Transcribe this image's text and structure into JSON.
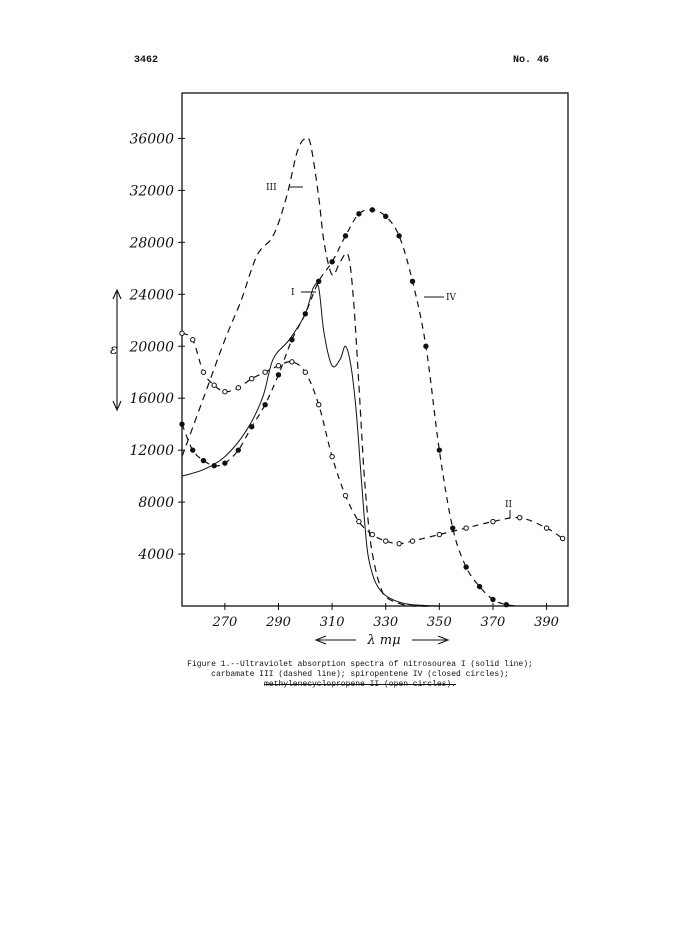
{
  "header": {
    "page_number": "3462",
    "journal_number": "No. 46"
  },
  "chart_data": {
    "type": "line",
    "xlabel": "λ mμ",
    "ylabel": "ε",
    "xlim": [
      254,
      398
    ],
    "ylim": [
      0,
      39500
    ],
    "xticks": [
      270,
      290,
      310,
      330,
      350,
      370,
      390
    ],
    "xtick_labels": [
      "270",
      "290",
      "310",
      "330",
      "350",
      "370",
      "390"
    ],
    "yticks": [
      4000,
      8000,
      12000,
      16000,
      20000,
      24000,
      28000,
      32000,
      36000
    ],
    "ytick_labels": [
      "4000",
      "8000",
      "12000",
      "16000",
      "20000",
      "24000",
      "28000",
      "32000",
      "36000"
    ],
    "grid": false,
    "series": [
      {
        "name": "I",
        "style": "solid",
        "x": [
          254,
          262,
          270,
          278,
          284,
          288,
          294,
          300,
          303,
          305,
          307,
          310,
          313,
          315,
          317,
          319,
          321,
          323,
          325,
          327,
          330,
          335,
          340,
          350
        ],
        "y": [
          10000,
          10500,
          11500,
          13500,
          16000,
          19000,
          20500,
          22500,
          24500,
          24500,
          21000,
          18500,
          19000,
          20000,
          18500,
          15000,
          9500,
          4500,
          2500,
          1500,
          800,
          300,
          100,
          0
        ]
      },
      {
        "name": "III",
        "style": "dashed",
        "x": [
          254,
          262,
          270,
          276,
          282,
          288,
          293,
          297,
          300,
          302,
          305,
          307,
          310,
          313,
          316,
          318,
          320,
          322,
          324,
          326,
          328,
          330,
          335,
          340,
          350
        ],
        "y": [
          11500,
          16000,
          20500,
          23500,
          27000,
          28500,
          31500,
          35000,
          36000,
          35500,
          31500,
          28000,
          25500,
          26500,
          27000,
          23500,
          17000,
          10000,
          5500,
          3000,
          1500,
          700,
          200,
          0,
          0
        ]
      },
      {
        "name": "IV",
        "style": "closed-circles",
        "x": [
          254,
          258,
          262,
          266,
          270,
          275,
          280,
          285,
          290,
          295,
          300,
          305,
          310,
          315,
          320,
          325,
          330,
          335,
          340,
          345,
          350,
          355,
          360,
          365,
          370,
          375,
          380
        ],
        "y": [
          14000,
          12000,
          11200,
          10800,
          11000,
          12000,
          13800,
          15500,
          17800,
          20500,
          22500,
          25000,
          26500,
          28500,
          30200,
          30500,
          30000,
          28500,
          25000,
          20000,
          12000,
          6000,
          3000,
          1500,
          500,
          100,
          0
        ]
      },
      {
        "name": "II",
        "style": "open-circles",
        "x": [
          254,
          258,
          262,
          266,
          270,
          275,
          280,
          285,
          290,
          295,
          300,
          305,
          310,
          315,
          320,
          325,
          330,
          335,
          340,
          350,
          360,
          370,
          380,
          390,
          396
        ],
        "y": [
          21000,
          20500,
          18000,
          17000,
          16500,
          16800,
          17500,
          18000,
          18500,
          18800,
          18000,
          15500,
          11500,
          8500,
          6500,
          5500,
          5000,
          4800,
          5000,
          5500,
          6000,
          6500,
          6800,
          6000,
          5200
        ]
      }
    ],
    "annotations": [
      {
        "text": "I",
        "series": "I"
      },
      {
        "text": "III",
        "series": "III"
      },
      {
        "text": "IV",
        "series": "IV"
      },
      {
        "text": "II",
        "series": "II"
      }
    ]
  },
  "caption": {
    "line1": "Figure 1.--Ultraviolet absorption spectra of nitrosourea I (solid line);",
    "line2": "carbamate III (dashed line); spiropentene IV (closed circles);",
    "line3": "methylenecyclopropene II (open circles)."
  }
}
